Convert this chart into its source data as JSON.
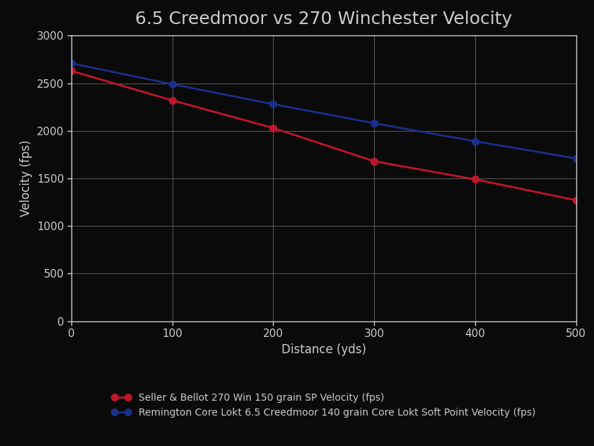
{
  "title": "6.5 Creedmoor vs 270 Winchester Velocity",
  "xlabel": "Distance (yds)",
  "ylabel": "Velocity (fps)",
  "x": [
    0,
    100,
    200,
    300,
    400,
    500
  ],
  "series": [
    {
      "label": "Seller & Bellot 270 Win 150 grain SP Velocity (fps)",
      "y": [
        2630,
        2320,
        2030,
        1680,
        1490,
        1270
      ],
      "color": "#C0152A",
      "marker": "o",
      "linewidth": 2.0
    },
    {
      "label": "Remington Core Lokt 6.5 Creedmoor 140 grain Core Lokt Soft Point Velocity (fps)",
      "y": [
        2710,
        2490,
        2280,
        2080,
        1890,
        1710
      ],
      "color": "#1B2F8A",
      "marker": "o",
      "linewidth": 2.0
    }
  ],
  "ylim": [
    0,
    3000
  ],
  "xlim": [
    0,
    500
  ],
  "yticks": [
    0,
    500,
    1000,
    1500,
    2000,
    2500,
    3000
  ],
  "xticks": [
    0,
    100,
    200,
    300,
    400,
    500
  ],
  "background_color": "#0a0a0a",
  "plot_bg_color": "#0a0a0a",
  "text_color": "#cccccc",
  "grid_color": "#888888",
  "spine_color": "#cccccc",
  "title_fontsize": 18,
  "axis_label_fontsize": 12,
  "tick_fontsize": 11,
  "legend_fontsize": 10,
  "marker_size": 7
}
